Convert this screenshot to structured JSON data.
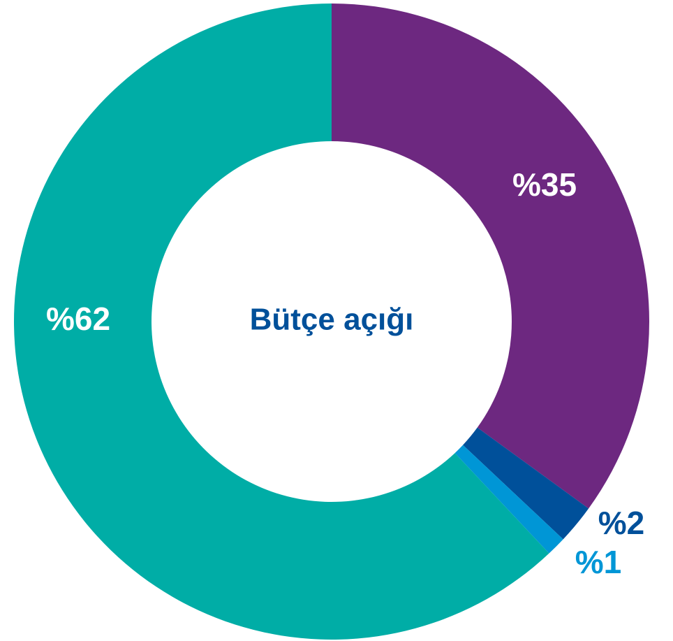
{
  "chart_data": {
    "type": "donut",
    "title": "Bütçe açığı",
    "categories": [
      null,
      null,
      null,
      null
    ],
    "values": [
      35,
      2,
      1,
      62
    ],
    "value_labels": [
      "%35",
      "%2",
      "%1",
      "%62"
    ],
    "colors": [
      "#6d2880",
      "#00509a",
      "#0096d6",
      "#00ada6"
    ]
  }
}
